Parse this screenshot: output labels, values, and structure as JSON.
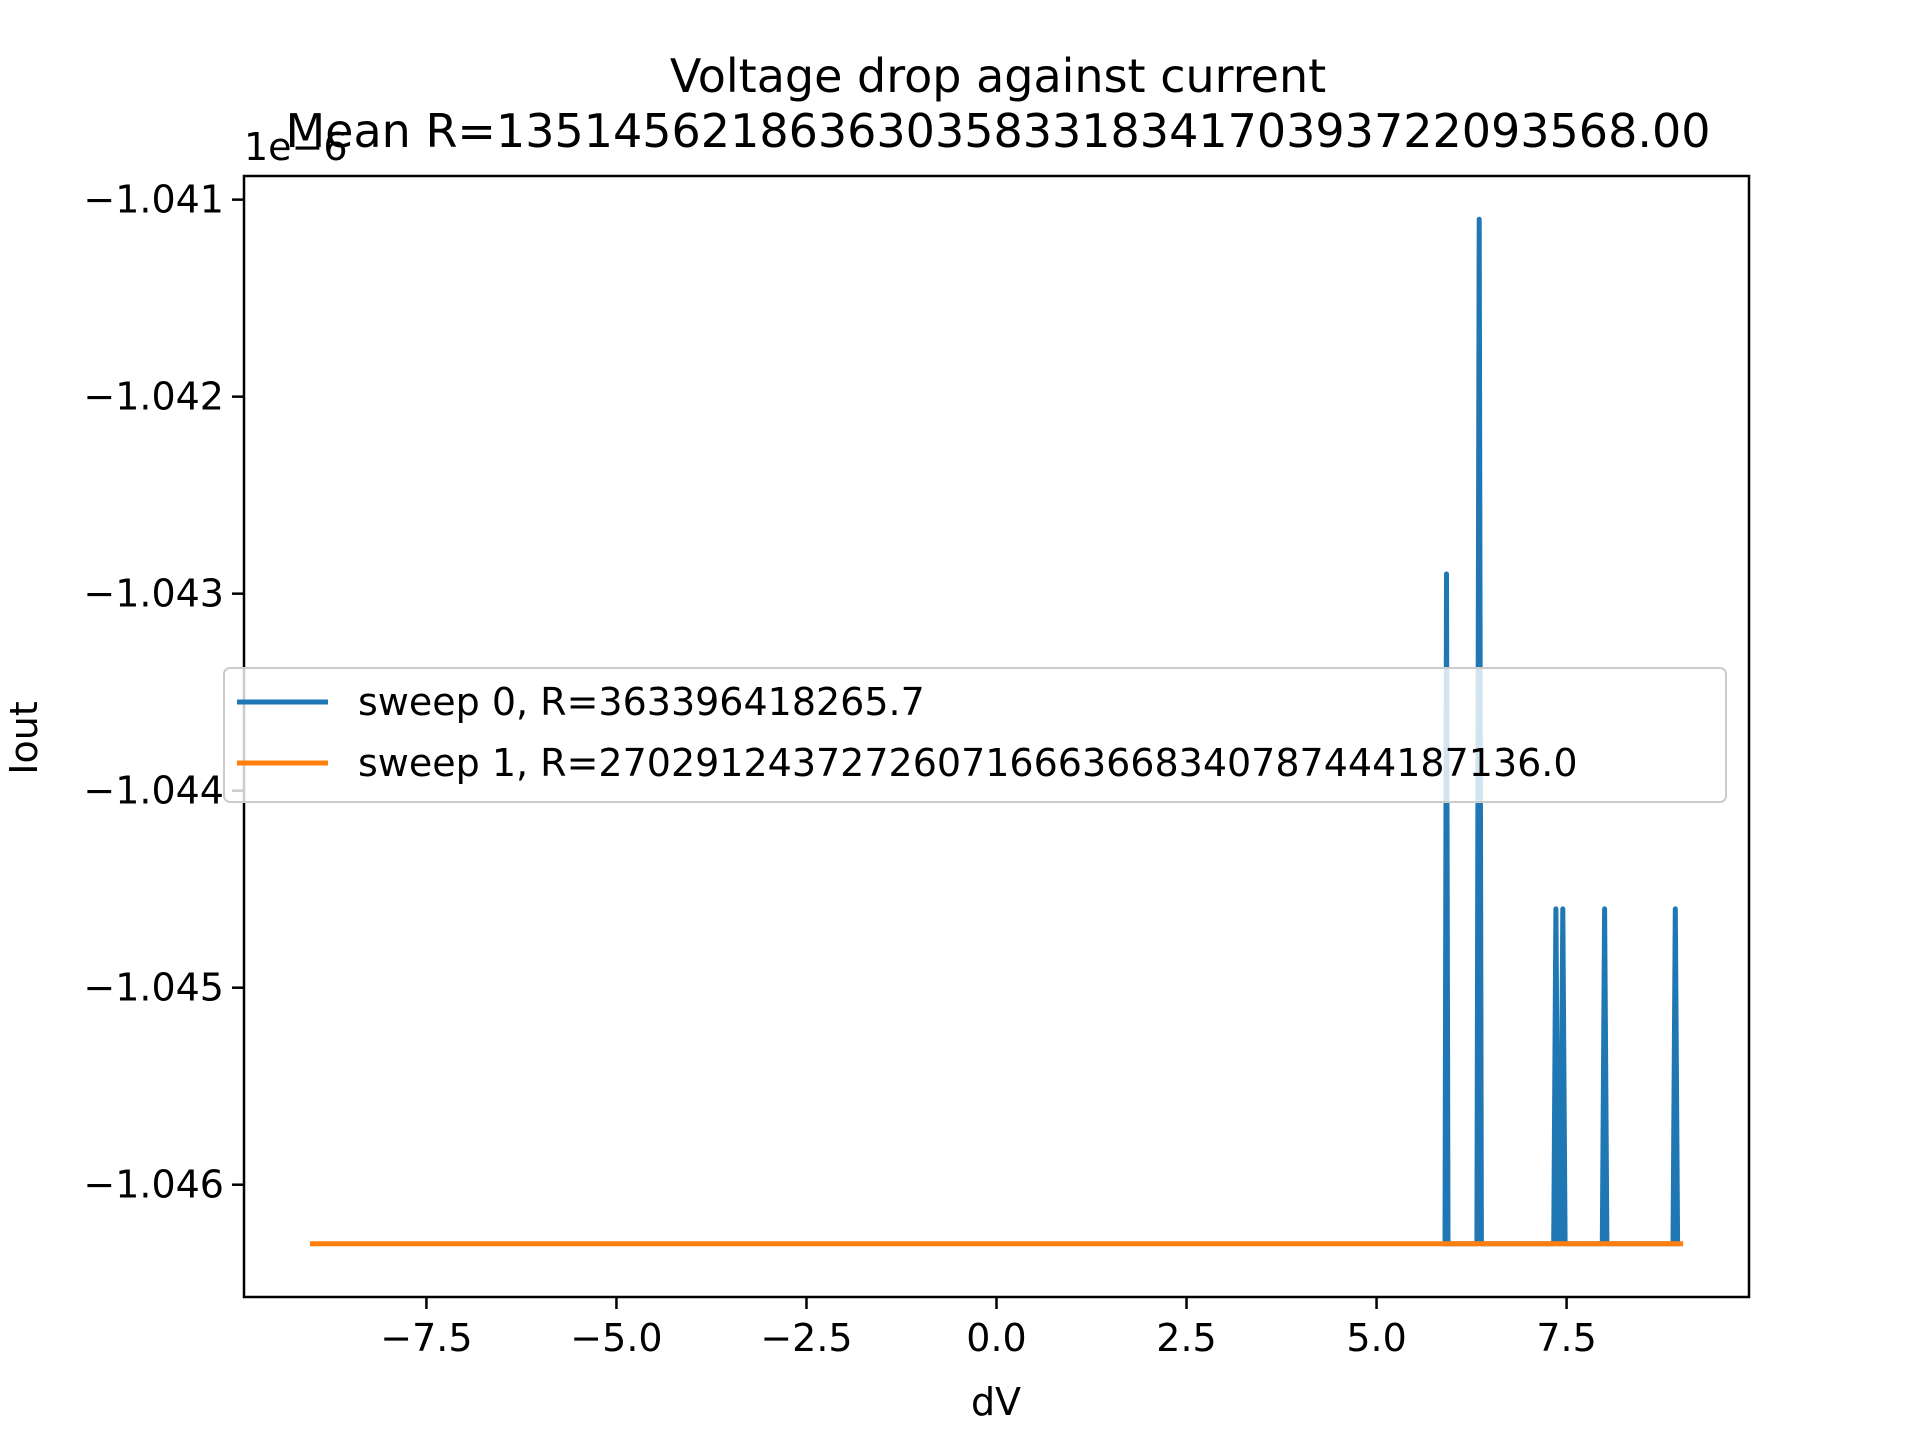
{
  "chart_data": {
    "type": "line",
    "title": "Voltage drop against current",
    "subtitle": "Mean R=135145621863630358331834170393722093568.00",
    "xlabel": "dV",
    "ylabel": "Iout",
    "y_offset_label": "1e−6",
    "xlim": [
      -9.9,
      9.9
    ],
    "ylim": [
      -1.04657,
      -1.04088
    ],
    "x_ticks": [
      -7.5,
      -5.0,
      -2.5,
      0.0,
      2.5,
      5.0,
      7.5
    ],
    "x_tick_labels": [
      "−7.5",
      "−5.0",
      "−2.5",
      "0.0",
      "2.5",
      "5.0",
      "7.5"
    ],
    "y_ticks": [
      -1.041,
      -1.042,
      -1.043,
      -1.044,
      -1.045,
      -1.046
    ],
    "y_tick_labels": [
      "−1.041",
      "−1.042",
      "−1.043",
      "−1.044",
      "−1.045",
      "−1.046"
    ],
    "legend_position": "center-right",
    "series": [
      {
        "name": "sweep 0, R=363396418265.7",
        "label": "sweep 0, R=363396418265.7",
        "color": "#1f77b4",
        "x": [
          5.9,
          5.92,
          5.94,
          6.32,
          6.35,
          6.38,
          7.33,
          7.36,
          7.39,
          7.42,
          7.45,
          7.48,
          7.97,
          8.0,
          8.03,
          8.9,
          8.93,
          8.96
        ],
        "y": [
          -1.0463,
          -1.0429,
          -1.0463,
          -1.0463,
          -1.0411,
          -1.0463,
          -1.0463,
          -1.0446,
          -1.0463,
          -1.0463,
          -1.0446,
          -1.0463,
          -1.0463,
          -1.0446,
          -1.0463,
          -1.0463,
          -1.0446,
          -1.0463
        ]
      },
      {
        "name": "sweep 1, R=270291243727260716663668340787444187136.0",
        "label": "sweep 1, R=270291243727260716663668340787444187136.0",
        "color": "#ff7f0e",
        "x": [
          -9.0,
          9.0
        ],
        "y": [
          -1.0463,
          -1.0463
        ]
      }
    ]
  }
}
